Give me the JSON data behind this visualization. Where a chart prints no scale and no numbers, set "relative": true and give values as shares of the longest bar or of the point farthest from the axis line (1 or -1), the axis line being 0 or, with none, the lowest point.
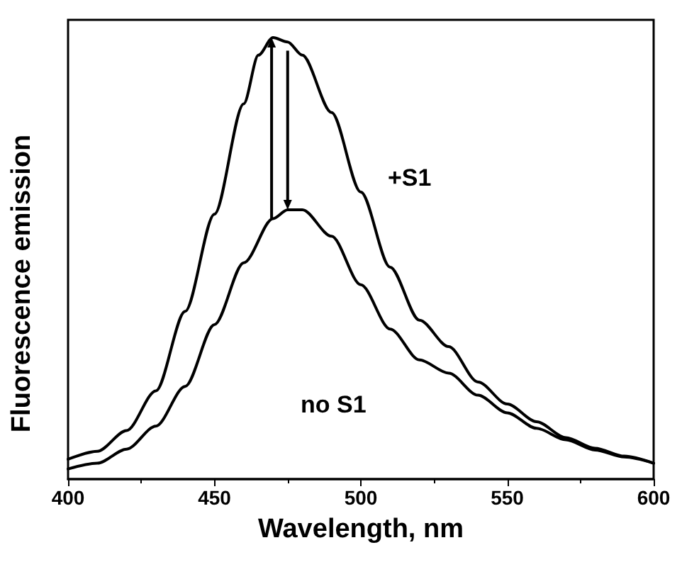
{
  "chart_data": {
    "type": "line",
    "relative": true,
    "xlabel": "Wavelength, nm",
    "ylabel": "Fluorescence emission",
    "xlim": [
      400,
      600
    ],
    "xticks": [
      400,
      450,
      500,
      550,
      600
    ],
    "grid": false,
    "legend": false,
    "marker": "none",
    "line_style": "solid",
    "series": [
      {
        "name": "+S1",
        "color": "#000000",
        "x": [
          400,
          410,
          420,
          430,
          440,
          450,
          460,
          465,
          470,
          475,
          480,
          490,
          500,
          510,
          520,
          530,
          540,
          550,
          560,
          570,
          580,
          590,
          600
        ],
        "values": [
          0.045,
          0.063,
          0.11,
          0.2,
          0.38,
          0.6,
          0.85,
          0.96,
          1,
          0.99,
          0.96,
          0.83,
          0.65,
          0.48,
          0.36,
          0.3,
          0.22,
          0.17,
          0.13,
          0.094,
          0.07,
          0.052,
          0.036
        ]
      },
      {
        "name": "no S1",
        "color": "#000000",
        "x": [
          400,
          410,
          420,
          430,
          440,
          450,
          460,
          470,
          475,
          480,
          490,
          500,
          510,
          520,
          530,
          540,
          550,
          560,
          570,
          580,
          590,
          600
        ],
        "values": [
          0.023,
          0.036,
          0.068,
          0.12,
          0.21,
          0.35,
          0.49,
          0.59,
          0.61,
          0.61,
          0.55,
          0.44,
          0.34,
          0.27,
          0.24,
          0.19,
          0.15,
          0.115,
          0.089,
          0.066,
          0.05,
          0.036
        ]
      }
    ]
  }
}
